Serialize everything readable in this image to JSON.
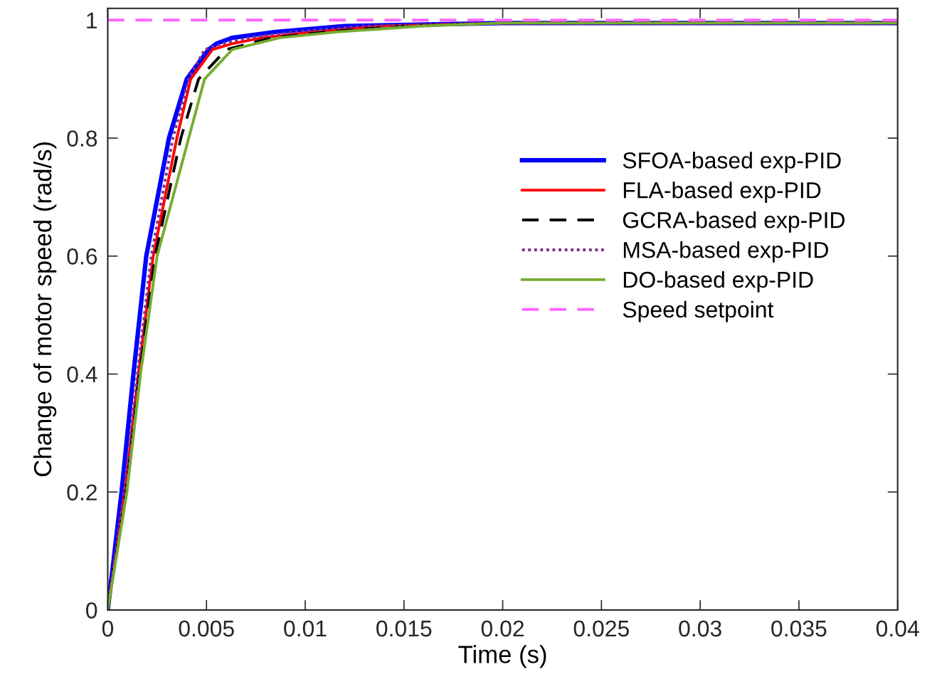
{
  "chart_data": {
    "type": "line",
    "xlabel": "Time (s)",
    "ylabel": "Change of motor speed (rad/s)",
    "xlim": [
      0,
      0.04
    ],
    "ylim": [
      0,
      1.02
    ],
    "xticks": [
      0,
      0.005,
      0.01,
      0.015,
      0.02,
      0.025,
      0.03,
      0.035,
      0.04
    ],
    "yticks": [
      0,
      0.2,
      0.4,
      0.6,
      0.8,
      1
    ],
    "grid": false,
    "legend": "right",
    "marker": "none",
    "series": [
      {
        "name": "SFOA-based exp-PID",
        "color": "#0000ff",
        "line_style": "solid",
        "x": [
          0,
          0.0007,
          0.0013,
          0.00195,
          0.0031,
          0.004,
          0.0051,
          0.0055,
          0.0063,
          0.0085,
          0.012,
          0.02,
          0.04
        ],
        "values": [
          0,
          0.2,
          0.4,
          0.6,
          0.8,
          0.9,
          0.95,
          0.96,
          0.97,
          0.98,
          0.99,
          0.995,
          0.995
        ]
      },
      {
        "name": "FLA-based exp-PID",
        "color": "#ff0000",
        "line_style": "solid",
        "x": [
          0,
          0.00086,
          0.00155,
          0.0023,
          0.0035,
          0.0042,
          0.0053,
          0.0063,
          0.0078,
          0.0104,
          0.014,
          0.02,
          0.04
        ],
        "values": [
          0,
          0.2,
          0.4,
          0.6,
          0.8,
          0.9,
          0.95,
          0.96,
          0.97,
          0.98,
          0.99,
          0.995,
          0.995
        ]
      },
      {
        "name": "GCRA-based exp-PID",
        "color": "#000000",
        "line_style": "dashed",
        "x": [
          0,
          0.00092,
          0.0016,
          0.0024,
          0.0037,
          0.0046,
          0.006,
          0.0083,
          0.011,
          0.015,
          0.02,
          0.04
        ],
        "values": [
          0,
          0.2,
          0.4,
          0.6,
          0.8,
          0.9,
          0.95,
          0.97,
          0.98,
          0.99,
          0.995,
          0.995
        ]
      },
      {
        "name": "MSA-based exp-PID",
        "color": "#7e2f8e",
        "line_style": "dotted",
        "x": [
          0,
          0.00083,
          0.0015,
          0.0022,
          0.0033,
          0.0041,
          0.0049,
          0.0058,
          0.0071,
          0.0094,
          0.013,
          0.02,
          0.04
        ],
        "values": [
          0,
          0.2,
          0.4,
          0.6,
          0.8,
          0.9,
          0.95,
          0.96,
          0.97,
          0.98,
          0.99,
          0.995,
          0.995
        ]
      },
      {
        "name": "DO-based exp-PID",
        "color": "#77ac30",
        "line_style": "solid",
        "x": [
          0,
          0.00097,
          0.00166,
          0.0025,
          0.0041,
          0.0049,
          0.0063,
          0.0087,
          0.0116,
          0.016,
          0.02,
          0.04
        ],
        "values": [
          0,
          0.2,
          0.4,
          0.6,
          0.8,
          0.9,
          0.95,
          0.97,
          0.98,
          0.99,
          0.995,
          0.995
        ]
      },
      {
        "name": "Speed setpoint",
        "color": "#ff66ff",
        "line_style": "dashed",
        "x": [
          0,
          0.04
        ],
        "values": [
          1,
          1
        ]
      }
    ]
  }
}
